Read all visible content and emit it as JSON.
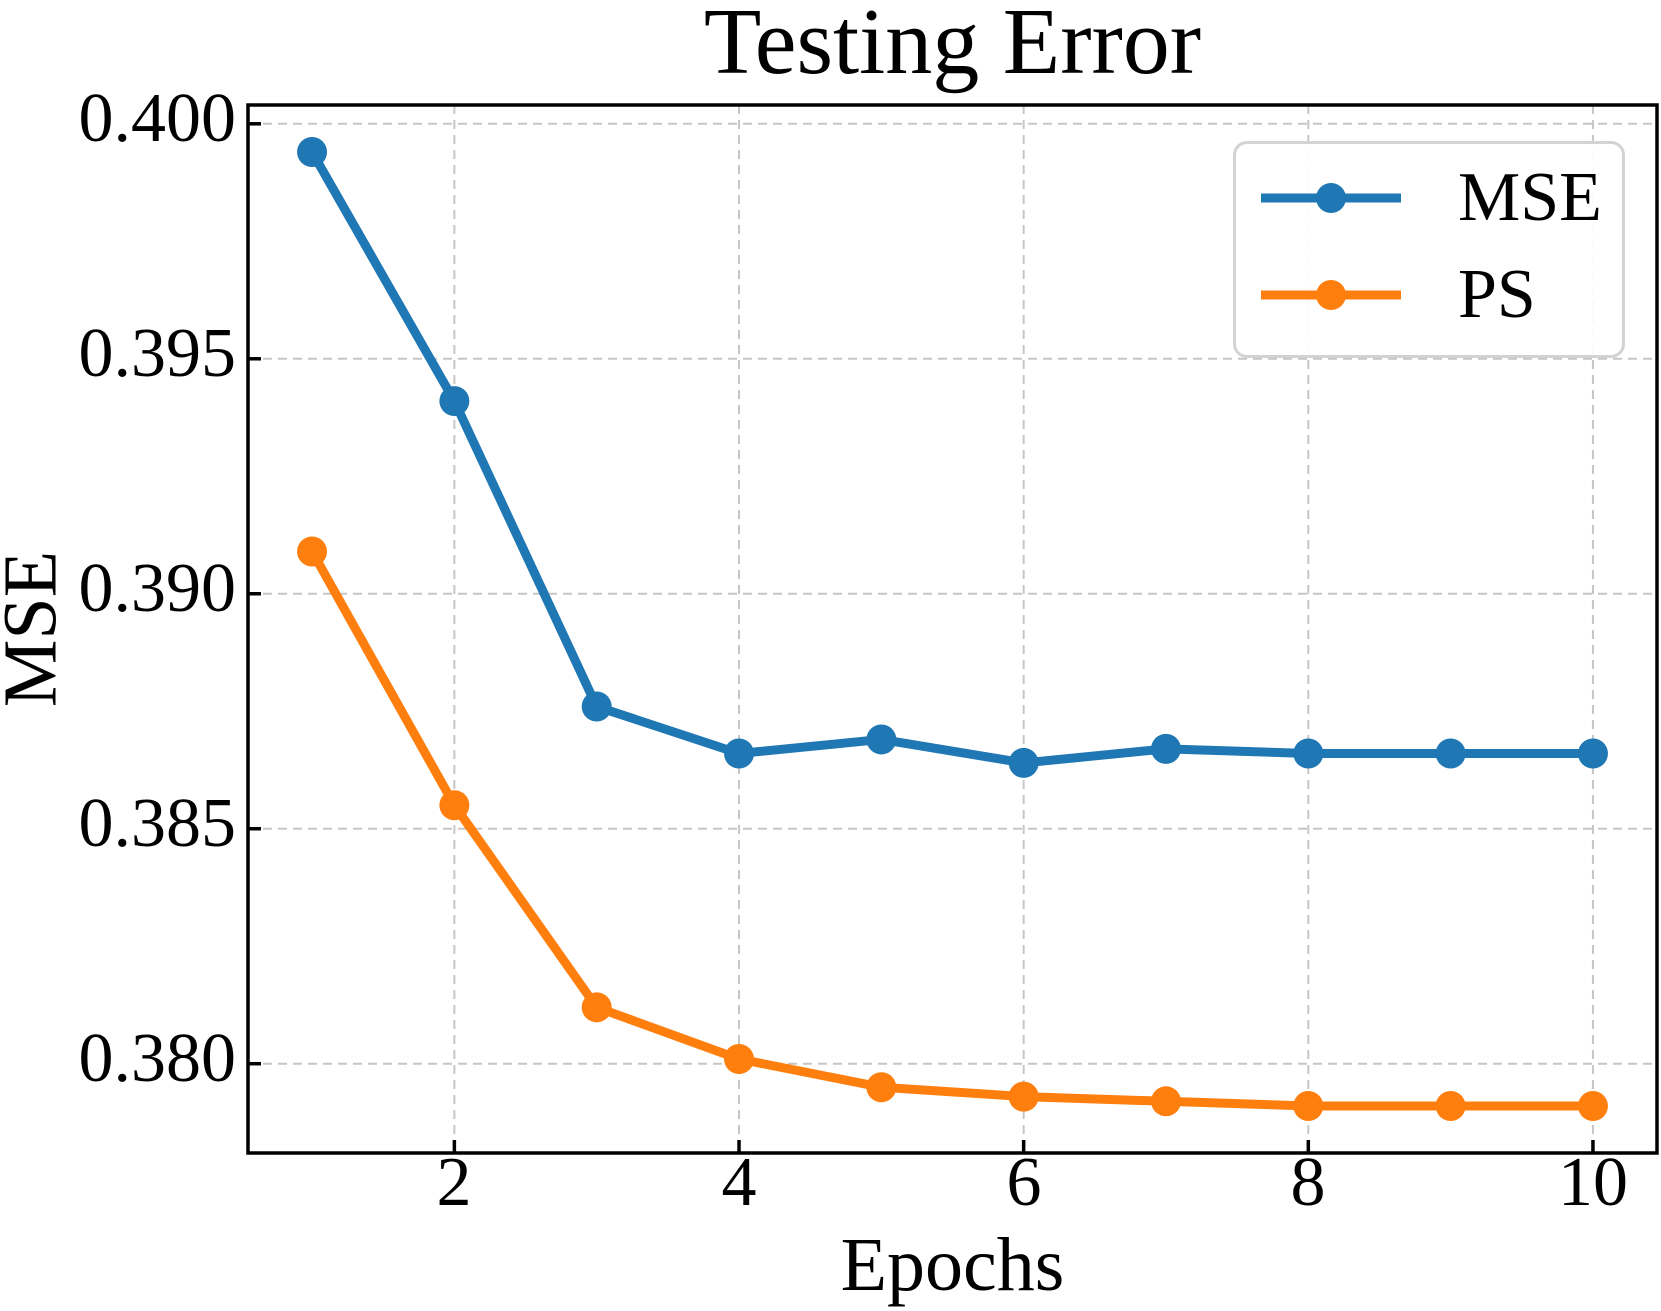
{
  "chart_data": {
    "type": "line",
    "title": "Testing Error",
    "xlabel": "Epochs",
    "ylabel": "MSE",
    "x": [
      1,
      2,
      3,
      4,
      5,
      6,
      7,
      8,
      9,
      10
    ],
    "series": [
      {
        "name": "MSE",
        "color": "#1f77b4",
        "values": [
          0.3994,
          0.3941,
          0.3876,
          0.3866,
          0.3869,
          0.3864,
          0.3867,
          0.3866,
          0.3866,
          0.3866
        ]
      },
      {
        "name": "PS",
        "color": "#ff7f0e",
        "values": [
          0.3909,
          0.3855,
          0.3812,
          0.3801,
          0.3795,
          0.3793,
          0.3792,
          0.3791,
          0.3791,
          0.3791
        ]
      }
    ],
    "xlim": [
      0.55,
      10.45
    ],
    "ylim": [
      0.3781,
      0.4004
    ],
    "xticks": {
      "values": [
        2,
        4,
        6,
        8,
        10
      ],
      "labels": [
        "2",
        "4",
        "6",
        "8",
        "10"
      ]
    },
    "yticks": {
      "values": [
        0.38,
        0.385,
        0.39,
        0.395,
        0.4
      ],
      "labels": [
        "0.380",
        "0.385",
        "0.390",
        "0.395",
        "0.400"
      ]
    },
    "grid": {
      "visible": true,
      "style": "dashed",
      "color": "#c6c6c6"
    },
    "legend": {
      "position": "upper right",
      "entries": [
        "MSE",
        "PS"
      ]
    }
  }
}
